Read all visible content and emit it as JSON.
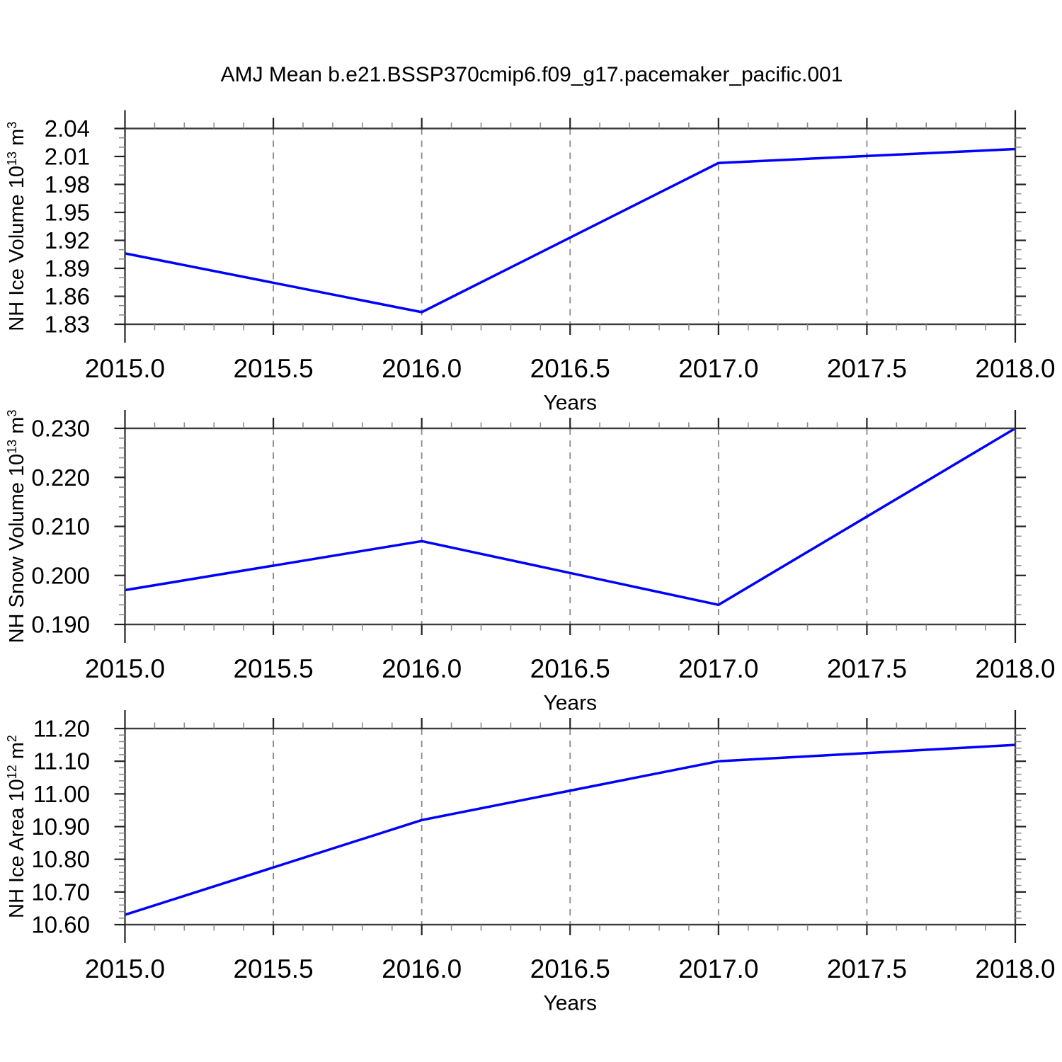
{
  "title": "AMJ Mean b.e21.BSSP370cmip6.f09_g17.pacemaker_pacific.001",
  "colors": {
    "line": "#0000ff",
    "frame": "#3d3d3d",
    "major_tick": "#222222",
    "minor_tick": "#8c8c8c",
    "gridline": "#8a8a8a",
    "text": "#000000"
  },
  "chart_data": [
    {
      "type": "line",
      "name": "nh-ice-volume",
      "x": [
        2015,
        2016,
        2017,
        2018
      ],
      "values": [
        1.906,
        1.843,
        2.003,
        2.018
      ],
      "xlabel": "Years",
      "ylabel": "NH Ice Volume 10^13 m^3",
      "ylabel_rich": [
        {
          "t": "NH Ice Volume 10"
        },
        {
          "t": "13",
          "sup": true
        },
        {
          "t": " m"
        },
        {
          "t": "3",
          "sup": true
        }
      ],
      "xlim": [
        2015.0,
        2018.0
      ],
      "ylim": [
        1.83,
        2.04
      ],
      "x_major_step": 0.5,
      "x_minor_step": 0.1,
      "y_major_step": 0.03,
      "y_minor_step": 0.01,
      "x_tick_labels": [
        "2015.0",
        "2015.5",
        "2016.0",
        "2016.5",
        "2017.0",
        "2017.5",
        "2018.0"
      ],
      "y_tick_labels": [
        "1.83",
        "1.86",
        "1.89",
        "1.92",
        "1.95",
        "1.98",
        "2.01",
        "2.04"
      ],
      "gridlines_x": [
        2015.5,
        2016.0,
        2016.5,
        2017.0,
        2017.5
      ],
      "grid_style": "vertical-dashed",
      "legend": "none"
    },
    {
      "type": "line",
      "name": "nh-snow-volume",
      "x": [
        2015,
        2016,
        2017,
        2018
      ],
      "values": [
        0.197,
        0.207,
        0.194,
        0.23
      ],
      "xlabel": "Years",
      "ylabel": "NH Snow Volume 10^13 m^3",
      "ylabel_rich": [
        {
          "t": "NH Snow Volume 10"
        },
        {
          "t": "13",
          "sup": true
        },
        {
          "t": " m"
        },
        {
          "t": "3",
          "sup": true
        }
      ],
      "xlim": [
        2015.0,
        2018.0
      ],
      "ylim": [
        0.19,
        0.23
      ],
      "x_major_step": 0.5,
      "x_minor_step": 0.1,
      "y_major_step": 0.01,
      "y_minor_step": 0.002,
      "x_tick_labels": [
        "2015.0",
        "2015.5",
        "2016.0",
        "2016.5",
        "2017.0",
        "2017.5",
        "2018.0"
      ],
      "y_tick_labels": [
        "0.190",
        "0.200",
        "0.210",
        "0.220",
        "0.230"
      ],
      "gridlines_x": [
        2015.5,
        2016.0,
        2016.5,
        2017.0,
        2017.5
      ],
      "grid_style": "vertical-dashed",
      "legend": "none"
    },
    {
      "type": "line",
      "name": "nh-ice-area",
      "x": [
        2015,
        2016,
        2017,
        2018
      ],
      "values": [
        10.63,
        10.92,
        11.1,
        11.15
      ],
      "xlabel": "Years",
      "ylabel": "NH Ice Area 10^12 m^2",
      "ylabel_rich": [
        {
          "t": "NH Ice Area 10"
        },
        {
          "t": "12",
          "sup": true
        },
        {
          "t": " m"
        },
        {
          "t": "2",
          "sup": true
        }
      ],
      "xlim": [
        2015.0,
        2018.0
      ],
      "ylim": [
        10.6,
        11.2
      ],
      "x_major_step": 0.5,
      "x_minor_step": 0.1,
      "y_major_step": 0.1,
      "y_minor_step": 0.02,
      "x_tick_labels": [
        "2015.0",
        "2015.5",
        "2016.0",
        "2016.5",
        "2017.0",
        "2017.5",
        "2018.0"
      ],
      "y_tick_labels": [
        "10.60",
        "10.70",
        "10.80",
        "10.90",
        "11.00",
        "11.10",
        "11.20"
      ],
      "gridlines_x": [
        2015.5,
        2016.0,
        2016.5,
        2017.0,
        2017.5
      ],
      "grid_style": "vertical-dashed",
      "legend": "none"
    }
  ]
}
